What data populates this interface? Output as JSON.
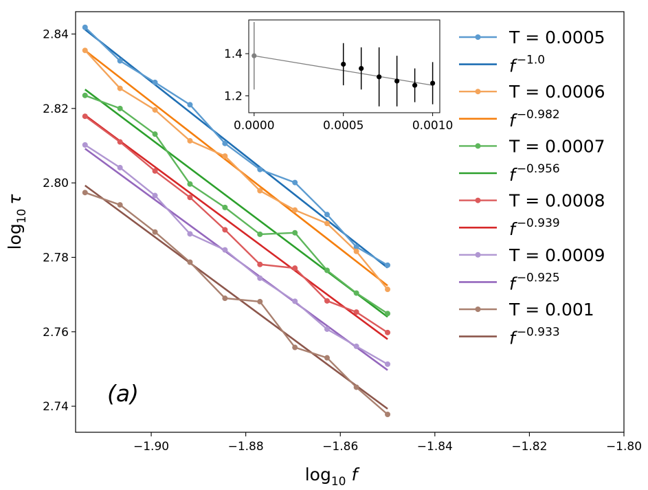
{
  "chart_data": {
    "type": "line",
    "panel_label": "(a)",
    "xlabel": {
      "prefix": "log",
      "sub": "10",
      "var": "f"
    },
    "ylabel": {
      "prefix": "log",
      "sub": "10",
      "var": "τ"
    },
    "xlim": [
      -1.916,
      -1.8
    ],
    "ylim": [
      2.733,
      2.846
    ],
    "xticks": [
      -1.9,
      -1.88,
      -1.86,
      -1.84,
      -1.82,
      -1.8
    ],
    "xtick_labels": [
      "−1.90",
      "−1.88",
      "−1.86",
      "−1.84",
      "−1.82",
      "−1.80"
    ],
    "yticks": [
      2.74,
      2.76,
      2.78,
      2.8,
      2.82,
      2.84
    ],
    "ytick_labels": [
      "2.74",
      "2.76",
      "2.78",
      "2.80",
      "2.82",
      "2.84"
    ],
    "x": [
      -1.914,
      -1.9066,
      -1.8992,
      -1.8918,
      -1.8844,
      -1.877,
      -1.8696,
      -1.8628,
      -1.8566,
      -1.85
    ],
    "series": [
      {
        "name": "T = 0.0005",
        "color": "#5b9bd0",
        "fit_color": "#1f6fb4",
        "fit_label": "−1.0",
        "values": [
          2.8418,
          2.8328,
          2.827,
          2.821,
          2.8106,
          2.8036,
          2.8001,
          2.7915,
          2.7828,
          2.7779
        ],
        "fit": [
          2.8412,
          2.7772
        ]
      },
      {
        "name": "T = 0.0006",
        "color": "#f4a45a",
        "fit_color": "#f57f0e",
        "fit_label": "−0.982",
        "values": [
          2.8356,
          2.8254,
          2.8196,
          2.8113,
          2.8072,
          2.7979,
          2.7927,
          2.7891,
          2.7816,
          2.7714
        ],
        "fit": [
          2.8356,
          2.7724
        ]
      },
      {
        "name": "T = 0.0007",
        "color": "#5db65b",
        "fit_color": "#2ca02c",
        "fit_label": "−0.956",
        "values": [
          2.8235,
          2.82,
          2.8131,
          2.7997,
          2.7934,
          2.7862,
          2.7866,
          2.7765,
          2.7704,
          2.7649
        ],
        "fit": [
          2.8251,
          2.764
        ]
      },
      {
        "name": "T = 0.0008",
        "color": "#dc5a5b",
        "fit_color": "#d62728",
        "fit_label": "−0.939",
        "values": [
          2.8179,
          2.811,
          2.8032,
          2.7961,
          2.7874,
          2.7781,
          2.7771,
          2.7683,
          2.7653,
          2.7598
        ],
        "fit": [
          2.8182,
          2.758
        ]
      },
      {
        "name": "T = 0.0009",
        "color": "#b096d2",
        "fit_color": "#9467bd",
        "fit_label": "−0.925",
        "values": [
          2.8102,
          2.8041,
          2.7966,
          2.7863,
          2.782,
          2.7744,
          2.7682,
          2.7607,
          2.7561,
          2.7513
        ],
        "fit": [
          2.8092,
          2.7497
        ]
      },
      {
        "name": "T = 0.001",
        "color": "#a9806f",
        "fit_color": "#8c564b",
        "fit_label": "−0.933",
        "values": [
          2.7974,
          2.7941,
          2.7868,
          2.7787,
          2.769,
          2.7681,
          2.7558,
          2.753,
          2.7451,
          2.7378
        ],
        "fit": [
          2.7993,
          2.7393
        ]
      }
    ],
    "inset": {
      "type": "scatter_errorbar",
      "xlim": [
        -3e-05,
        0.00104
      ],
      "ylim": [
        1.12,
        1.56
      ],
      "xticks": [
        0.0,
        0.0005,
        0.001
      ],
      "xtick_labels": [
        "0.0000",
        "0.0005",
        "0.0010"
      ],
      "yticks": [
        1.2,
        1.4
      ],
      "ytick_labels": [
        "1.2",
        "1.4"
      ],
      "points": [
        {
          "x": 0.0,
          "y": 1.39,
          "err": 0.16,
          "color": "#808080"
        },
        {
          "x": 0.0005,
          "y": 1.35,
          "err": 0.1,
          "color": "#000000"
        },
        {
          "x": 0.0006,
          "y": 1.33,
          "err": 0.1,
          "color": "#000000"
        },
        {
          "x": 0.0007,
          "y": 1.29,
          "err": 0.14,
          "color": "#000000"
        },
        {
          "x": 0.0008,
          "y": 1.27,
          "err": 0.12,
          "color": "#000000"
        },
        {
          "x": 0.0009,
          "y": 1.25,
          "err": 0.08,
          "color": "#000000"
        },
        {
          "x": 0.001,
          "y": 1.26,
          "err": 0.1,
          "color": "#000000"
        }
      ],
      "fit": {
        "x": [
          0.0,
          0.001
        ],
        "y": [
          1.39,
          1.25
        ],
        "color": "#808080"
      }
    }
  }
}
